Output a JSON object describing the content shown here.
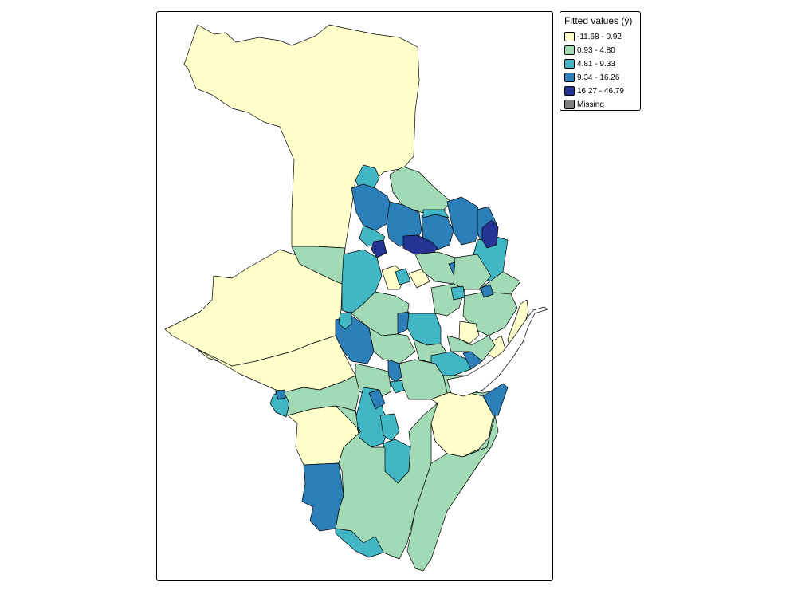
{
  "legend": {
    "title": "Fitted values (ŷ)",
    "classes": [
      {
        "label": "-11.68 - 0.92",
        "color": "#ffffcc"
      },
      {
        "label": "0.93 - 4.80",
        "color": "#a1dab4"
      },
      {
        "label": "4.81 - 9.33",
        "color": "#41b6c4"
      },
      {
        "label": "9.34 - 16.26",
        "color": "#2c7fb8"
      },
      {
        "label": "16.27 - 46.79",
        "color": "#253494"
      },
      {
        "label": "Missing",
        "color": "#808080"
      }
    ]
  },
  "map": {
    "background": "#ffffff",
    "border_color": "#000000",
    "water_color": "#ffffff"
  }
}
